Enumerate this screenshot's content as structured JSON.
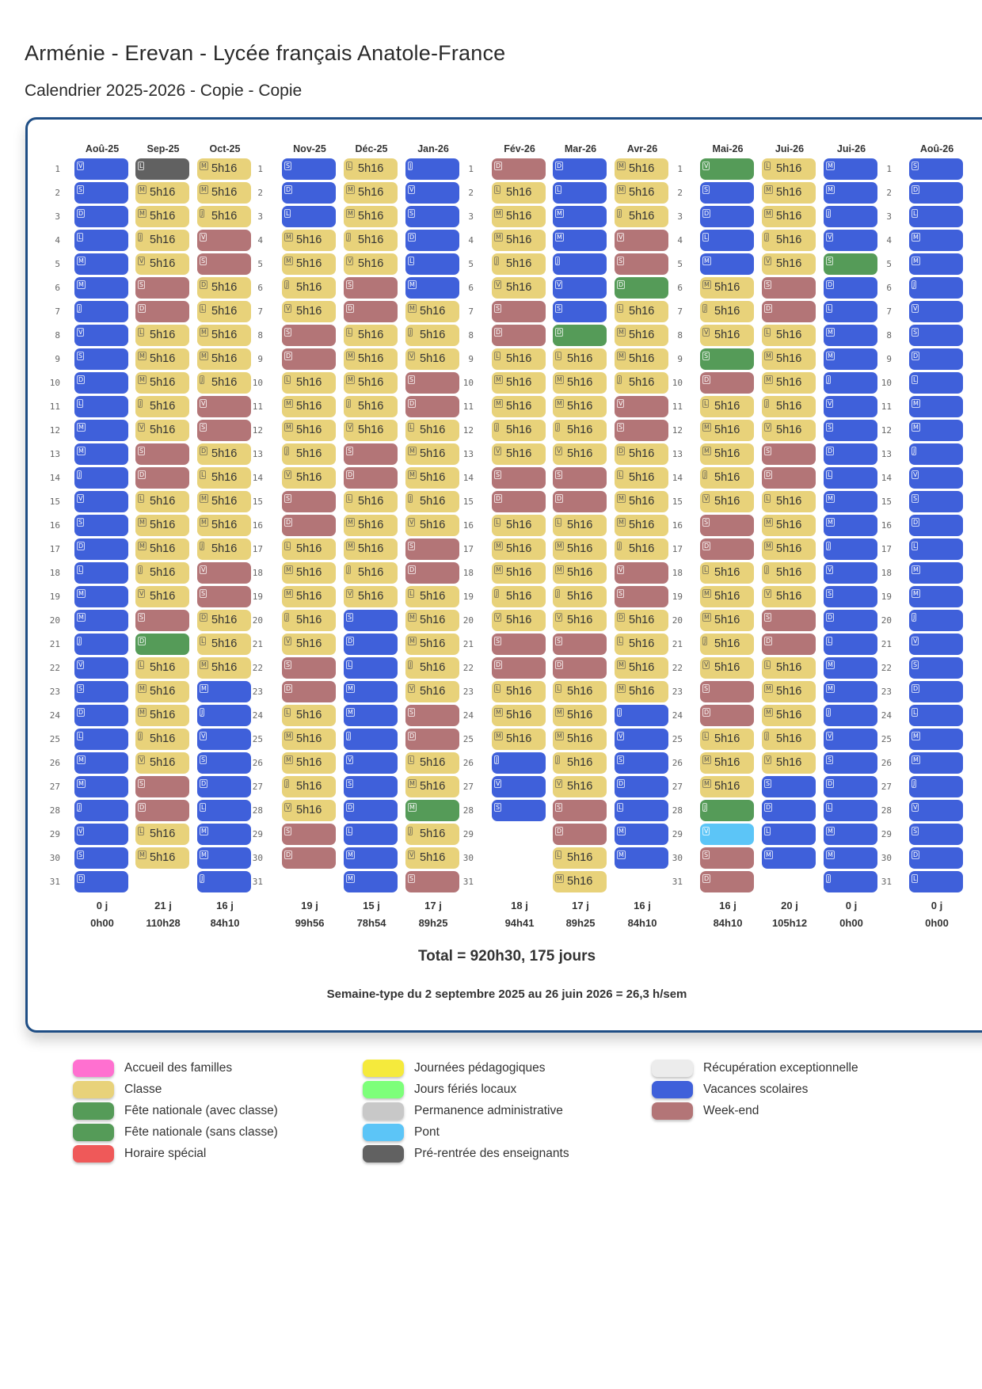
{
  "header": {
    "title": "Arménie - Erevan - Lycée français Anatole-France",
    "subtitle": "Calendrier 2025-2026 - Copie - Copie"
  },
  "colors": {
    "C": "#e8d27a",
    "V": "#3f60da",
    "W": "#b37577",
    "F": "#559b58",
    "P": "#5cc5f7",
    "R": "#616161"
  },
  "months": [
    {
      "name": "Aoû-25",
      "first": "V",
      "len": 31,
      "codes": "VVVVVVVVVVVVVVVVVVVVVVVVVVVVVVV",
      "days": "0 j",
      "hours": "0h00"
    },
    {
      "name": "Sep-25",
      "first": "L",
      "len": 30,
      "codes": "RCCCCWWCCCCCWWCCCCCWFCCCCCWWCC",
      "days": "21 j",
      "hours": "110h28"
    },
    {
      "name": "Oct-25",
      "first": "M",
      "len": 31,
      "codes": "CCCWWCCCCCWWCCCCCWWCCCVVVVVVVVV",
      "days": "16 j",
      "hours": "84h10"
    },
    {
      "name": "Nov-25",
      "first": "S",
      "len": 30,
      "codes": "VVVCCCCWWCCCCCWWCCCCCWWCCCCCWW",
      "days": "19 j",
      "hours": "99h56"
    },
    {
      "name": "Déc-25",
      "first": "L",
      "len": 31,
      "codes": "CCCCCWWCCCCCWWCCCCCVVVVVVVVVVVV",
      "days": "15 j",
      "hours": "78h54"
    },
    {
      "name": "Jan-26",
      "first": "J",
      "len": 31,
      "codes": "VVVVVVCCCWWCCCCCWWCCCCCWWCCFCCW",
      "days": "17 j",
      "hours": "89h25"
    },
    {
      "name": "Fév-26",
      "first": "D",
      "len": 28,
      "codes": "WCCCCCWWCCCCCWWCCCCCWWCCCVVV",
      "days": "18 j",
      "hours": "94h41"
    },
    {
      "name": "Mar-26",
      "first": "D",
      "len": 31,
      "codes": "VVVVVVVFCCCCCWWCCCCCWWCCCCCWWCC",
      "days": "17 j",
      "hours": "89h25"
    },
    {
      "name": "Avr-26",
      "first": "M",
      "len": 30,
      "codes": "CCCWWFCCCCWWCCCCCWWCCCCVVVVVVV",
      "days": "16 j",
      "hours": "84h10"
    },
    {
      "name": "Mai-26",
      "first": "V",
      "len": 31,
      "codes": "FVVVVCCCFWCCCCCWWCCCCCWWCCCFPWW",
      "days": "16 j",
      "hours": "84h10"
    },
    {
      "name": "Jui-26",
      "first": "L",
      "len": 30,
      "codes": "CCCCCWWCCCCCWWCCCCCWWCCCCCVVVV",
      "days": "20 j",
      "hours": "105h12"
    },
    {
      "name": "Jui-26",
      "first": "M",
      "len": 31,
      "codes": "VVVVFVVVVVVVVVVVVVVVVVVVVVVVVVV",
      "days": "0 j",
      "hours": "0h00"
    },
    {
      "name": "Aoû-26",
      "first": "S",
      "len": 31,
      "codes": "VVVVVVVVVVVVVVVVVVVVVVVVVVVVVVV",
      "days": "0 j",
      "hours": "0h00"
    }
  ],
  "hours_per_day": "5h16",
  "weekdays": [
    "L",
    "M",
    "M",
    "J",
    "V",
    "S",
    "D"
  ],
  "total": "Total = 920h30, 175 jours",
  "semaine": "Semaine-type du 2 septembre 2025 au 26 juin 2026 = 26,3 h/sem",
  "legend": [
    {
      "label": "Accueil des familles",
      "color": "#ff70d0"
    },
    {
      "label": "Classe",
      "color": "#e8d27a"
    },
    {
      "label": "Fête nationale (avec classe)",
      "color": "#559b58"
    },
    {
      "label": "Fête nationale (sans classe)",
      "color": "#559b58"
    },
    {
      "label": "Horaire spécial",
      "color": "#ef5959"
    },
    {
      "label": "Journées pédagogiques",
      "color": "#f5ea3c"
    },
    {
      "label": "Jours fériés locaux",
      "color": "#7dff7a"
    },
    {
      "label": "Permanence administrative",
      "color": "#c8c8c8"
    },
    {
      "label": "Pont",
      "color": "#5cc5f7"
    },
    {
      "label": "Pré-rentrée des enseignants",
      "color": "#616161"
    },
    {
      "label": "Récupération exceptionnelle",
      "color": "#ececec"
    },
    {
      "label": "Vacances scolaires",
      "color": "#3f60da"
    },
    {
      "label": "Week-end",
      "color": "#b37577"
    }
  ]
}
